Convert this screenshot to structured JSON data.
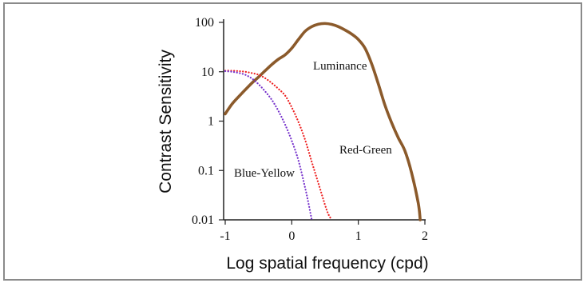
{
  "chart_data": {
    "type": "line",
    "xlabel": "Log spatial frequency (cpd)",
    "ylabel": "Contrast Sensitivity",
    "x_scale": "linear",
    "y_scale": "log",
    "xlim": [
      -1,
      2
    ],
    "ylim": [
      0.01,
      100
    ],
    "x_ticks": [
      "-1",
      "0",
      "1",
      "2"
    ],
    "y_ticks": [
      "100",
      "10",
      "1",
      "0.1",
      "0.01"
    ],
    "grid": false,
    "series": [
      {
        "name": "Luminance",
        "color": "#8b5a2b",
        "style": "solid",
        "x": [
          -1.0,
          -0.9,
          -0.8,
          -0.7,
          -0.6,
          -0.5,
          -0.4,
          -0.3,
          -0.2,
          -0.1,
          0.0,
          0.1,
          0.2,
          0.3,
          0.4,
          0.5,
          0.6,
          0.7,
          0.8,
          0.9,
          1.0,
          1.1,
          1.2,
          1.3,
          1.4,
          1.5,
          1.6,
          1.7,
          1.8,
          1.9,
          1.93
        ],
        "y": [
          1.4,
          2.2,
          3.1,
          4.3,
          5.9,
          7.8,
          10.5,
          14,
          18,
          22,
          30,
          45,
          66,
          82,
          92,
          95,
          91,
          82,
          70,
          58,
          45,
          30,
          14.5,
          5.7,
          2.1,
          0.93,
          0.46,
          0.25,
          0.09,
          0.022,
          0.01
        ]
      },
      {
        "name": "Red-Green",
        "color": "#ee2222",
        "style": "dotted",
        "x": [
          -1.0,
          -0.9,
          -0.8,
          -0.7,
          -0.6,
          -0.5,
          -0.4,
          -0.3,
          -0.2,
          -0.1,
          0.0,
          0.1,
          0.2,
          0.3,
          0.4,
          0.5,
          0.55,
          0.6
        ],
        "y": [
          10.5,
          10.5,
          10.3,
          10,
          9.4,
          8.7,
          7.4,
          5.9,
          4.5,
          3.3,
          1.9,
          0.96,
          0.42,
          0.15,
          0.055,
          0.02,
          0.013,
          0.01
        ]
      },
      {
        "name": "Blue-Yellow",
        "color": "#7733cc",
        "style": "dotted",
        "x": [
          -1.0,
          -0.9,
          -0.8,
          -0.7,
          -0.6,
          -0.5,
          -0.4,
          -0.3,
          -0.2,
          -0.1,
          0.0,
          0.1,
          0.2,
          0.25,
          0.3
        ],
        "y": [
          10.3,
          10,
          9.5,
          8.7,
          7.3,
          5.6,
          4.0,
          2.7,
          1.6,
          0.85,
          0.4,
          0.16,
          0.045,
          0.022,
          0.01
        ]
      }
    ]
  }
}
